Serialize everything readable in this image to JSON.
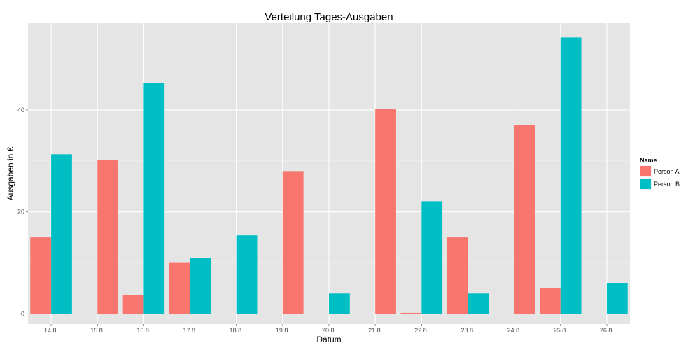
{
  "chart_data": {
    "type": "bar",
    "title": "Verteilung Tages-Ausgaben",
    "xlabel": "Datum",
    "ylabel": "Ausgaben in €",
    "categories": [
      "14.8.",
      "15.8.",
      "16.8.",
      "17.8.",
      "18.8.",
      "19.8.",
      "20.8.",
      "21.8.",
      "22.8.",
      "23.8.",
      "24.8.",
      "25.8.",
      "26.8."
    ],
    "legend_title": "Name",
    "legend_position": "right",
    "grid": true,
    "ylim": [
      -2,
      57
    ],
    "yticks": [
      0,
      20,
      40
    ],
    "series": [
      {
        "name": "Person A",
        "color": "#f8766d",
        "values": [
          15,
          null,
          3.7,
          10,
          null,
          null,
          null,
          null,
          0.2,
          15,
          null,
          5,
          null
        ],
        "shifted_values": [
          null,
          30.2,
          null,
          null,
          null,
          28,
          null,
          40.2,
          null,
          null,
          37,
          null,
          null
        ]
      },
      {
        "name": "Person B",
        "color": "#00bfc4",
        "values": [
          31.3,
          null,
          45.3,
          11,
          15.4,
          null,
          4,
          null,
          22.1,
          4,
          null,
          54.2,
          6
        ]
      }
    ]
  }
}
